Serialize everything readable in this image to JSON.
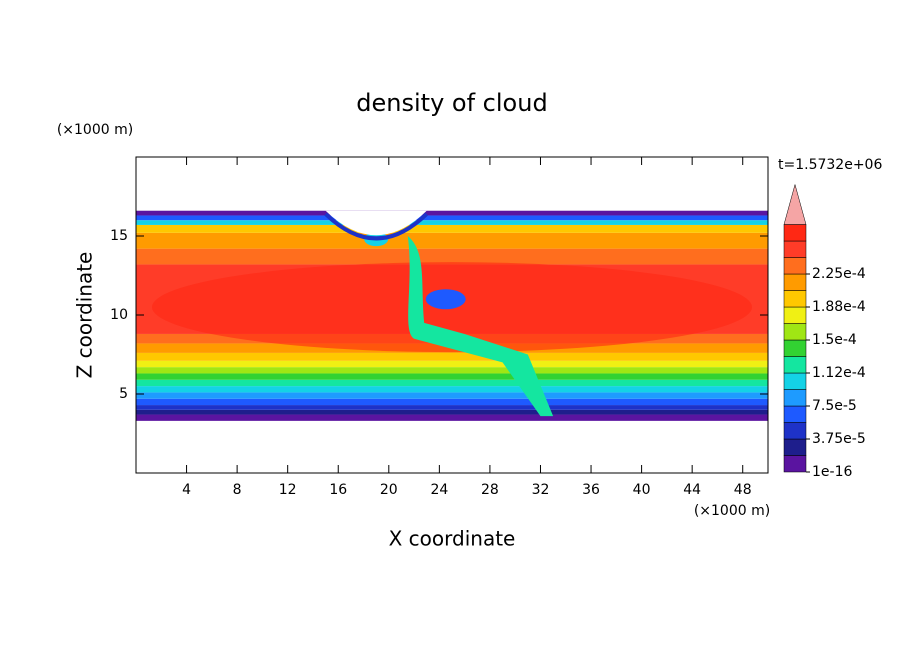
{
  "chart_data": {
    "type": "contour",
    "title": "density of cloud",
    "xlabel": "X coordinate",
    "ylabel": "Z coordinate",
    "xunit": "(×1000 m)",
    "yunit": "(×1000 m)",
    "time_label": "t=1.5732e+06",
    "xlim": [
      0,
      50
    ],
    "ylim": [
      0,
      20
    ],
    "xticks": [
      4,
      8,
      12,
      16,
      20,
      24,
      28,
      32,
      36,
      40,
      44,
      48
    ],
    "yticks": [
      5,
      10,
      15
    ],
    "colorbar": {
      "ticks": [
        {
          "value": 1e-16,
          "label": "1e-16"
        },
        {
          "value": 3.75e-05,
          "label": "3.75e-5"
        },
        {
          "value": 7.5e-05,
          "label": "7.5e-5"
        },
        {
          "value": 0.000112,
          "label": "1.12e-4"
        },
        {
          "value": 0.00015,
          "label": "1.5e-4"
        },
        {
          "value": 0.000188,
          "label": "1.88e-4"
        },
        {
          "value": 0.000225,
          "label": "2.25e-4"
        }
      ],
      "colors": [
        "#5a14a0",
        "#1e1e8c",
        "#1e32c8",
        "#1e5aff",
        "#1e9bff",
        "#14d2e6",
        "#14e6a0",
        "#32d232",
        "#a0e614",
        "#f0f014",
        "#ffc800",
        "#ff9b00",
        "#ff6e1e",
        "#ff3c28",
        "#ff2814"
      ],
      "extend_color": "#f5a5a5"
    }
  }
}
